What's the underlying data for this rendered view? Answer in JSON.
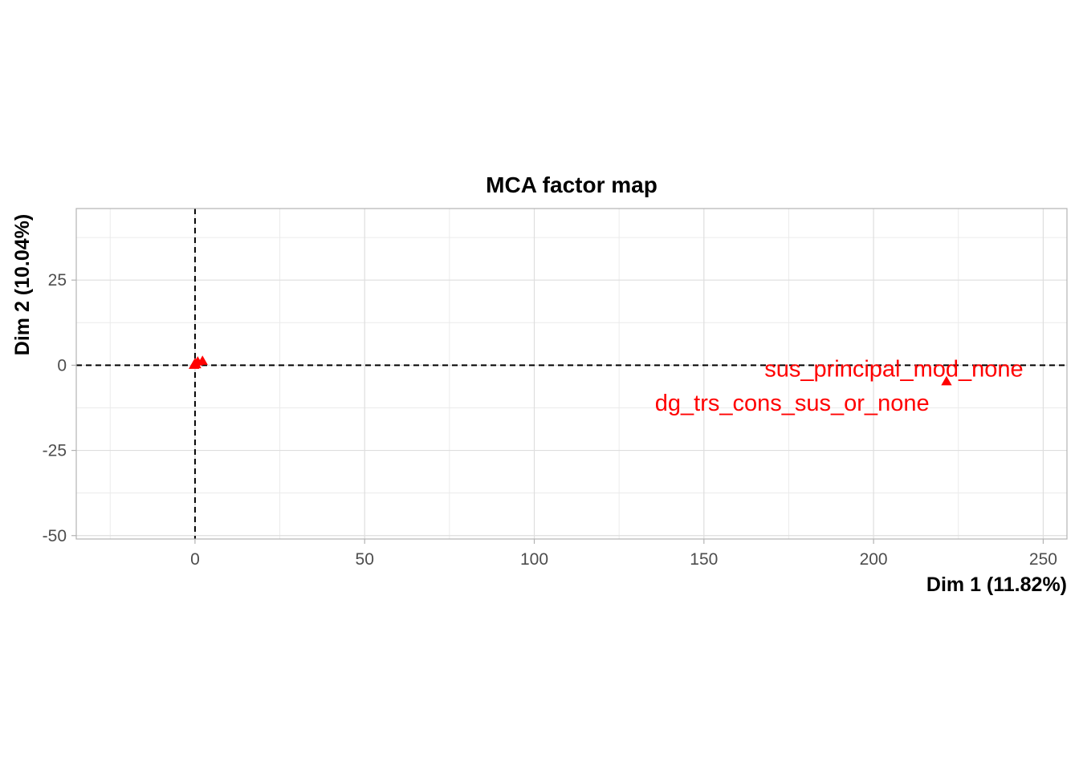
{
  "chart_data": {
    "type": "scatter",
    "title": "MCA factor map",
    "xlabel": "Dim 1 (11.82%)",
    "ylabel": "Dim 2 (10.04%)",
    "xlim": [
      -35,
      257
    ],
    "ylim": [
      -51,
      46
    ],
    "x_ticks": [
      0,
      50,
      100,
      150,
      200,
      250
    ],
    "y_ticks": [
      -50,
      -25,
      0,
      25
    ],
    "reference_lines": {
      "x": 0,
      "y": 0,
      "style": "dashed"
    },
    "grid": true,
    "marker": "triangle",
    "color": "#ff0000",
    "points": [
      {
        "x": 0.0,
        "y": 0.5,
        "label": ""
      },
      {
        "x": 0.3,
        "y": 0.2,
        "label": ""
      },
      {
        "x": 0.8,
        "y": 1.0,
        "label": ""
      },
      {
        "x": -0.3,
        "y": 0.0,
        "label": ""
      },
      {
        "x": 2.2,
        "y": 1.2,
        "label": ""
      },
      {
        "x": 221.5,
        "y": -4.8,
        "label": ""
      }
    ],
    "labels": [
      {
        "text": "sus_principal_mod_none",
        "x": 206,
        "y": -1.0
      },
      {
        "text": "dg_trs_cons_sus_or_none",
        "x": 176,
        "y": -11.0
      }
    ]
  }
}
